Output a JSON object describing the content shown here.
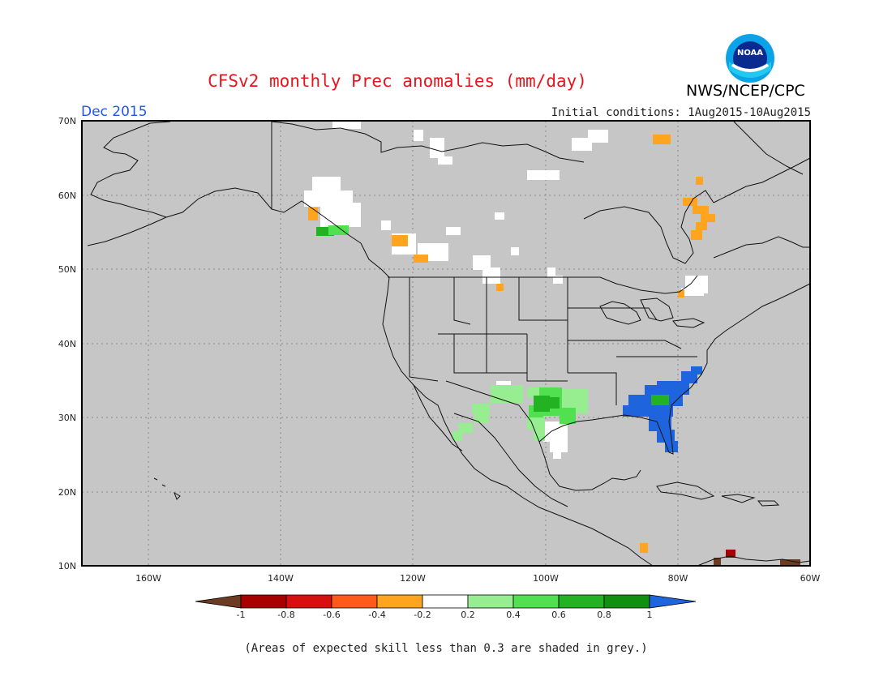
{
  "header": {
    "title": "CFSv2 monthly Prec anomalies (mm/day)",
    "agency": "NWS/NCEP/CPC",
    "logo_text": "NOAA",
    "period": "Dec 2015",
    "initial_conditions": "Initial conditions: 1Aug2015-10Aug2015"
  },
  "map": {
    "lon_range": [
      -170,
      -60
    ],
    "lat_range": [
      10,
      70
    ],
    "lat_ticks": [
      "10N",
      "20N",
      "30N",
      "40N",
      "50N",
      "60N",
      "70N"
    ],
    "lon_ticks": [
      "160W",
      "140W",
      "120W",
      "100W",
      "80W",
      "60W"
    ],
    "grid": "dotted",
    "background": "grey (skill < 0.3)"
  },
  "colorbar": {
    "labels": [
      "-1",
      "-0.8",
      "-0.6",
      "-0.4",
      "-0.2",
      "0.2",
      "0.4",
      "0.6",
      "0.8",
      "1"
    ],
    "colors": {
      "below_min": "#6b3b22",
      "bins": [
        "#a80000",
        "#d70f0f",
        "#ff5a1a",
        "#ffa41f",
        "#ffffff",
        "#96ee90",
        "#50e050",
        "#22b222",
        "#109010"
      ],
      "above_max": "#1e64dc"
    }
  },
  "footnote": "(Areas of expected skill less than 0.3 are shaded in grey.)"
}
